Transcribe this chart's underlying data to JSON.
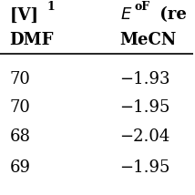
{
  "col1_header_line1": "[V] ",
  "col1_header_superscript": "1",
  "col2_header_line1": "E",
  "col2_header_sup1": "oF",
  "col2_header_line1b": " (re",
  "col1_header_line2": "DMF",
  "col2_header_line2": "MeCN",
  "rows": [
    [
      "70",
      "−1.93"
    ],
    [
      "70",
      "−1.95"
    ],
    [
      "68",
      "−2.04"
    ],
    [
      "69",
      "−1.95"
    ]
  ],
  "background_color": "#ffffff",
  "text_color": "#000000",
  "font_size": 13,
  "header_font_size": 13
}
